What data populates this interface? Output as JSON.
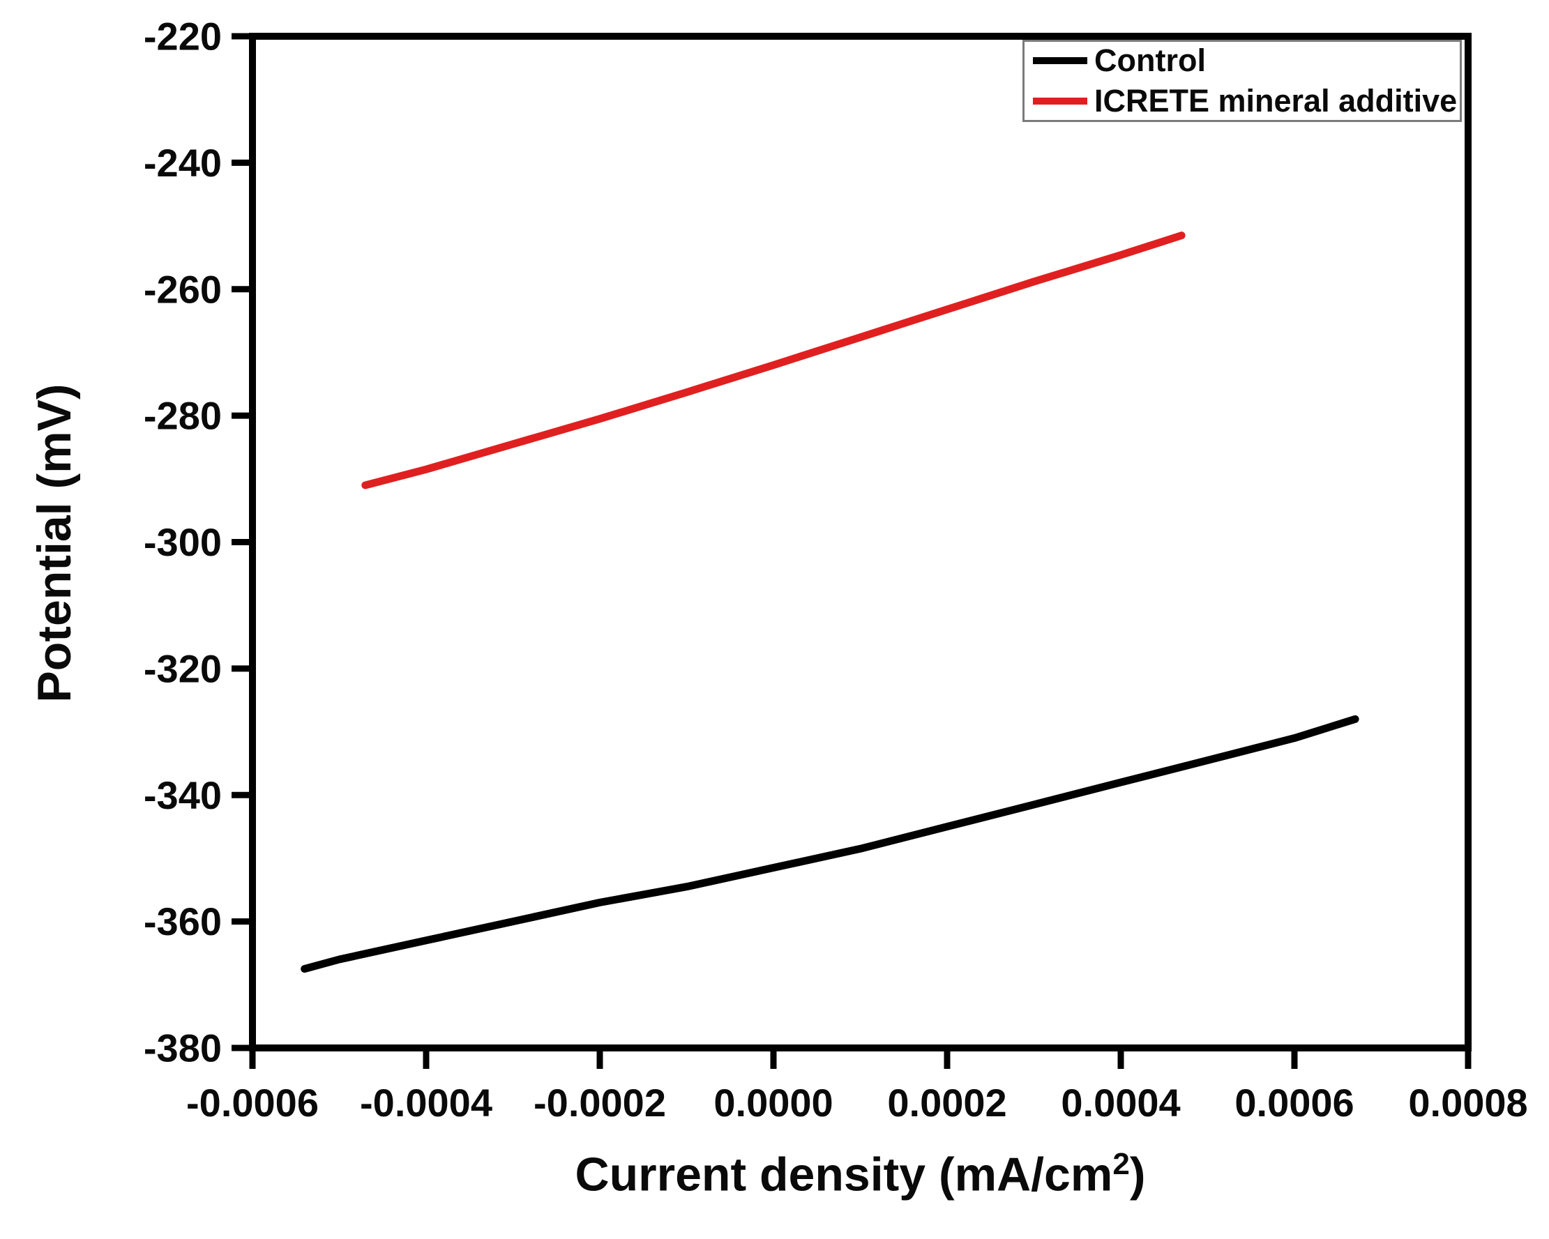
{
  "page": {
    "background": "#ffffff",
    "axis_color": "#000000",
    "text_color": "#0a0a0a"
  },
  "labels": {
    "xlabel_prefix": "Current density (mA/cm",
    "xlabel_sup": "2",
    "xlabel_suffix": ")",
    "ylabel": "Potential (mV)"
  },
  "chart_data": {
    "type": "line",
    "title": "",
    "xlabel": "Current density (mA/cm²)",
    "ylabel": "Potential (mV)",
    "xlim": [
      -0.0006,
      0.0008
    ],
    "ylim": [
      -380,
      -220
    ],
    "x_ticks": [
      -0.0006,
      -0.0004,
      -0.0002,
      0.0,
      0.0002,
      0.0004,
      0.0006,
      0.0008
    ],
    "x_tick_labels": [
      "-0.0006",
      "-0.0004",
      "-0.0002",
      "0.0000",
      "0.0002",
      "0.0004",
      "0.0006",
      "0.0008"
    ],
    "y_ticks": [
      -220,
      -240,
      -260,
      -280,
      -300,
      -320,
      -340,
      -360,
      -380
    ],
    "y_tick_labels": [
      "-220",
      "-240",
      "-260",
      "-280",
      "-300",
      "-320",
      "-340",
      "-360",
      "-380"
    ],
    "grid": false,
    "legend_position": "top-right",
    "series": [
      {
        "name": "Control",
        "color": "#000000",
        "x": [
          -0.00054,
          -0.0005,
          -0.0004,
          -0.0003,
          -0.0002,
          -0.0001,
          0.0,
          0.0001,
          0.0002,
          0.0003,
          0.0004,
          0.0005,
          0.0006,
          0.00067
        ],
        "y": [
          -367.5,
          -366.0,
          -363.0,
          -360.0,
          -357.0,
          -354.5,
          -351.5,
          -348.5,
          -345.0,
          -341.5,
          -338.0,
          -334.5,
          -331.0,
          -328.0
        ]
      },
      {
        "name": "ICRETE mineral additive",
        "color": "#e02020",
        "x": [
          -0.00047,
          -0.0004,
          -0.0003,
          -0.0002,
          -0.0001,
          0.0,
          0.0001,
          0.0002,
          0.0003,
          0.0004,
          0.00047
        ],
        "y": [
          -291.0,
          -288.5,
          -284.5,
          -280.5,
          -276.3,
          -272.0,
          -267.6,
          -263.2,
          -258.8,
          -254.6,
          -251.5
        ]
      }
    ]
  }
}
